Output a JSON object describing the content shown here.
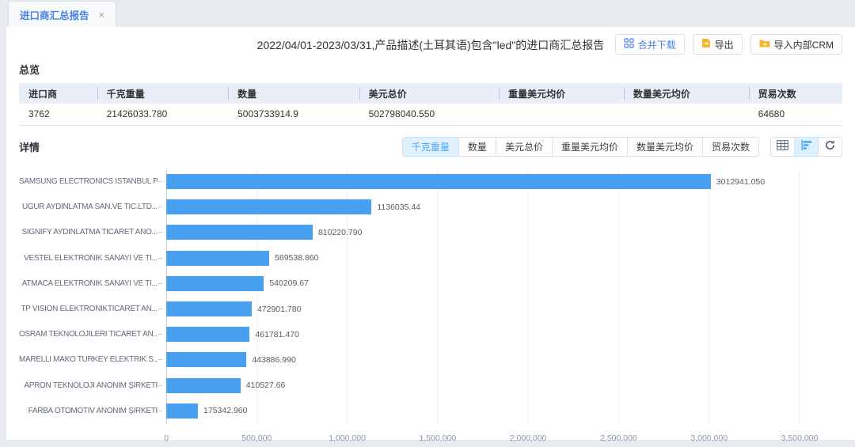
{
  "tab": {
    "label": "进口商汇总报告",
    "close_glyph": "×"
  },
  "report": {
    "title": "2022/04/01-2023/03/31,产品描述(土耳其语)包含\"led\"的进口商汇总报告",
    "actions": [
      {
        "label": "合并下载",
        "icon": "merge-download-icon",
        "primary": true
      },
      {
        "label": "导出",
        "icon": "export-icon",
        "primary": false
      },
      {
        "label": "导入内部CRM",
        "icon": "import-crm-icon",
        "primary": false
      }
    ]
  },
  "overview": {
    "section_title": "总览",
    "columns": [
      "进口商",
      "千克重量",
      "数量",
      "美元总价",
      "重量美元均价",
      "数量美元均价",
      "贸易次数"
    ],
    "row": [
      "3762",
      "21426033.780",
      "5003733914.9",
      "502798040.550",
      "",
      "",
      "64680"
    ]
  },
  "details": {
    "section_title": "详情",
    "metric_tabs": [
      {
        "label": "千克重量",
        "active": true
      },
      {
        "label": "数量",
        "active": false
      },
      {
        "label": "美元总价",
        "active": false
      },
      {
        "label": "重量美元均价",
        "active": false
      },
      {
        "label": "数量美元均价",
        "active": false
      },
      {
        "label": "贸易次数",
        "active": false
      }
    ],
    "view_buttons": [
      {
        "icon": "table-view-icon",
        "active": false
      },
      {
        "icon": "bar-chart-view-icon",
        "active": true
      },
      {
        "icon": "refresh-icon",
        "active": false
      }
    ]
  },
  "chart_data": {
    "type": "bar",
    "orientation": "horizontal",
    "title": "千克重量",
    "categories": [
      "SAMSUNG ELECTRONICS ISTANBUL P...",
      "UĞUR AYDINLATMA SAN.VE TİC.LTD...",
      "SİGNİFY AYDINLATMA TİCARET ANO...",
      "VESTEL ELEKTRONİK SANAYİ VE Tİ...",
      "ATMACA ELEKTRONİK SANAYİ VE Tİ...",
      "TP VISION ELEKTRONİKTİCARET AN...",
      "OSRAM TEKNOLOJİLERİ TİCARET AN...",
      "MARELLI MAKO TURKEY ELEKTRİK S...",
      "APRON TEKNOLOJİ ANONİM ŞİRKETİ",
      "FARBA OTOMOTİV ANONİM ŞİRKETİ"
    ],
    "values": [
      3012941.05,
      1136035.44,
      810220.79,
      569538.86,
      540209.67,
      472901.78,
      461781.47,
      443886.99,
      410527.66,
      175342.96
    ],
    "value_labels": [
      "3012941.050",
      "1136035.44",
      "810220.790",
      "569538.860",
      "540209.67",
      "472901.780",
      "461781.470",
      "443886.990",
      "410527.66",
      "175342.960"
    ],
    "x_ticks": [
      "0",
      "500,000",
      "1,000,000",
      "1,500,000",
      "2,000,000",
      "2,500,000",
      "3,000,000",
      "3,500,000"
    ],
    "xlim": [
      0,
      3500000
    ],
    "grid": true,
    "bar_color": "#47a1f0"
  },
  "colors": {
    "accent_blue": "#4581e6",
    "toggle_blue": "#4aa5f3",
    "bar_blue": "#47a1f0",
    "orange_icon": "#f7b52c"
  }
}
